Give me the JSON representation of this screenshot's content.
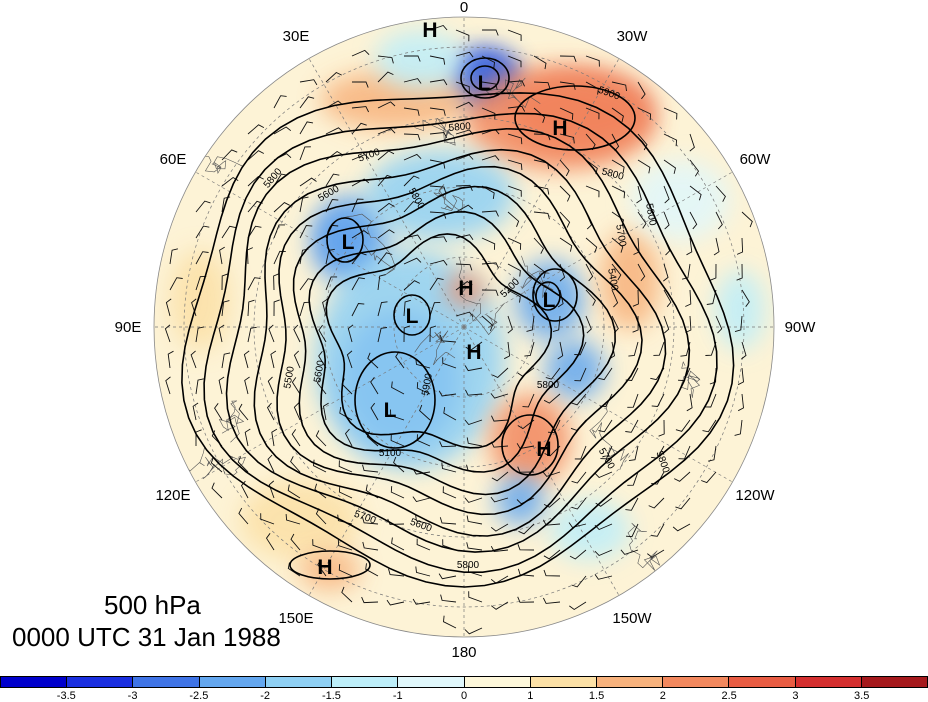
{
  "figure": {
    "level": "500 hPa",
    "time": "0000 UTC 31 Jan 1988"
  },
  "longitude_labels": [
    "0",
    "30W",
    "60W",
    "90W",
    "120W",
    "150W",
    "180",
    "150E",
    "120E",
    "90E",
    "60E",
    "30E"
  ],
  "pressure_centers": [
    {
      "type": "H"
    },
    {
      "type": "L"
    },
    {
      "type": "H"
    },
    {
      "type": "L"
    },
    {
      "type": "H"
    },
    {
      "type": "L"
    },
    {
      "type": "L"
    },
    {
      "type": "H"
    },
    {
      "type": "L"
    },
    {
      "type": "H"
    },
    {
      "type": "H"
    }
  ],
  "contour_labels": [
    "5900",
    "5800",
    "5700",
    "5800",
    "5800",
    "5600",
    "5800",
    "5700",
    "5800",
    "5200",
    "5400",
    "5500",
    "5600",
    "5800",
    "5900",
    "5100",
    "5600",
    "5700",
    "5800",
    "5700",
    "5800"
  ],
  "colorbar": {
    "colors": [
      "#0000cc",
      "#1a2fe0",
      "#3f74e6",
      "#64a7ef",
      "#8fd0f4",
      "#bdeef9",
      "#e0f7fb",
      "#fdf7da",
      "#fbe0a6",
      "#f7b27d",
      "#f2885e",
      "#e85c43",
      "#d42f2f",
      "#a5191c"
    ],
    "tick_labels": [
      "-3.5",
      "-3",
      "-2.5",
      "-2",
      "-1.5",
      "-1",
      "0",
      "1",
      "1.5",
      "2",
      "2.5",
      "3",
      "3.5"
    ]
  }
}
